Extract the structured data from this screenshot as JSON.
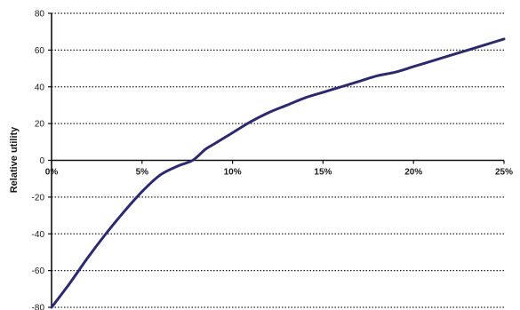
{
  "chart_data": {
    "type": "line",
    "title": "",
    "xlabel": "",
    "ylabel": "Relative utility",
    "xlim": [
      0,
      0.25
    ],
    "ylim": [
      -80,
      80
    ],
    "x_ticks": [
      {
        "value": 0,
        "label": "0%"
      },
      {
        "value": 0.05,
        "label": "5%"
      },
      {
        "value": 0.1,
        "label": "10%"
      },
      {
        "value": 0.15,
        "label": "15%"
      },
      {
        "value": 0.2,
        "label": "20%"
      },
      {
        "value": 0.25,
        "label": "25%"
      }
    ],
    "y_ticks": [
      {
        "value": 80,
        "label": "80"
      },
      {
        "value": 60,
        "label": "60"
      },
      {
        "value": 40,
        "label": "40"
      },
      {
        "value": 20,
        "label": "20"
      },
      {
        "value": 0,
        "label": "0"
      },
      {
        "value": -20,
        "label": "-20"
      },
      {
        "value": -40,
        "label": "-40"
      },
      {
        "value": -60,
        "label": "-60"
      },
      {
        "value": -80,
        "label": "-80"
      }
    ],
    "grid": "horizontal dotted",
    "series": [
      {
        "color": "#2b2a6e",
        "points": [
          [
            0.0,
            -80
          ],
          [
            0.01,
            -67
          ],
          [
            0.02,
            -53
          ],
          [
            0.03,
            -40
          ],
          [
            0.04,
            -28
          ],
          [
            0.05,
            -17
          ],
          [
            0.06,
            -8
          ],
          [
            0.07,
            -3
          ],
          [
            0.078,
            0
          ],
          [
            0.085,
            6
          ],
          [
            0.09,
            9
          ],
          [
            0.1,
            15
          ],
          [
            0.11,
            21
          ],
          [
            0.12,
            26
          ],
          [
            0.13,
            30
          ],
          [
            0.14,
            34
          ],
          [
            0.15,
            37
          ],
          [
            0.16,
            40
          ],
          [
            0.17,
            43
          ],
          [
            0.18,
            46
          ],
          [
            0.19,
            48
          ],
          [
            0.2,
            51
          ],
          [
            0.21,
            54
          ],
          [
            0.22,
            57
          ],
          [
            0.23,
            60
          ],
          [
            0.24,
            63
          ],
          [
            0.25,
            66
          ]
        ]
      }
    ]
  }
}
